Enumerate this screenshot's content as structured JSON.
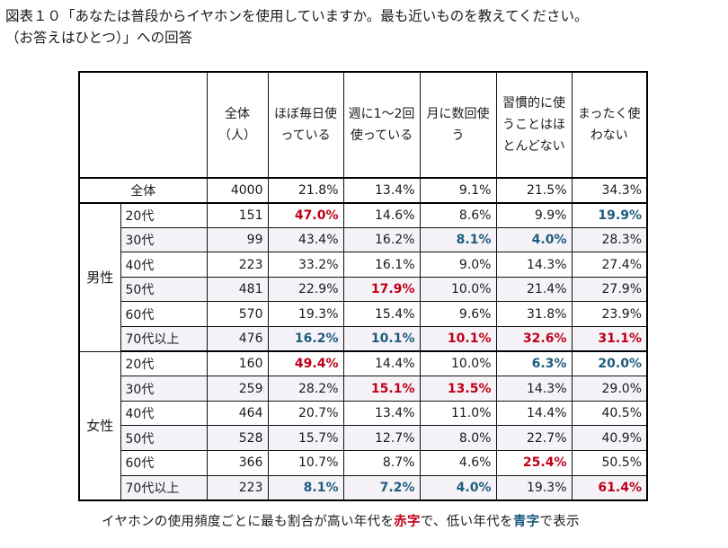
{
  "title": {
    "line1": "図表１０「あなたは普段からイヤホンを使用していますか。最も近いものを教えてください。",
    "line2": "（お答えはひとつ）」への回答"
  },
  "colors": {
    "highest": "#c00018",
    "lowest": "#1f5c7e",
    "shade": "#f6f3f8"
  },
  "columns": [
    "全体（人）",
    "ほぼ毎日使っている",
    "週に1〜2回使っている",
    "月に数回使う",
    "習慣的に使うことはほとんどない",
    "まったく使わない"
  ],
  "total": {
    "label": "全体",
    "values": [
      "4000",
      "21.8%",
      "13.4%",
      "9.1%",
      "21.5%",
      "34.3%"
    ]
  },
  "groups": [
    {
      "label": "男性",
      "rows": [
        {
          "age": "20代",
          "values": [
            "151",
            "47.0%",
            "14.6%",
            "8.6%",
            "9.9%",
            "19.9%"
          ],
          "hl": [
            "",
            "red",
            "",
            "",
            "",
            "blue"
          ]
        },
        {
          "age": "30代",
          "values": [
            "99",
            "43.4%",
            "16.2%",
            "8.1%",
            "4.0%",
            "28.3%"
          ],
          "hl": [
            "",
            "",
            "",
            "blue",
            "blue",
            ""
          ]
        },
        {
          "age": "40代",
          "values": [
            "223",
            "33.2%",
            "16.1%",
            "9.0%",
            "14.3%",
            "27.4%"
          ],
          "hl": [
            "",
            "",
            "",
            "",
            "",
            ""
          ]
        },
        {
          "age": "50代",
          "values": [
            "481",
            "22.9%",
            "17.9%",
            "10.0%",
            "21.4%",
            "27.9%"
          ],
          "hl": [
            "",
            "",
            "red",
            "",
            "",
            ""
          ]
        },
        {
          "age": "60代",
          "values": [
            "570",
            "19.3%",
            "15.4%",
            "9.6%",
            "31.8%",
            "23.9%"
          ],
          "hl": [
            "",
            "",
            "",
            "",
            "",
            ""
          ]
        },
        {
          "age": "70代以上",
          "values": [
            "476",
            "16.2%",
            "10.1%",
            "10.1%",
            "32.6%",
            "31.1%"
          ],
          "hl": [
            "",
            "blue",
            "blue",
            "red",
            "red",
            "red"
          ]
        }
      ]
    },
    {
      "label": "女性",
      "rows": [
        {
          "age": "20代",
          "values": [
            "160",
            "49.4%",
            "14.4%",
            "10.0%",
            "6.3%",
            "20.0%"
          ],
          "hl": [
            "",
            "red",
            "",
            "",
            "blue",
            "blue"
          ]
        },
        {
          "age": "30代",
          "values": [
            "259",
            "28.2%",
            "15.1%",
            "13.5%",
            "14.3%",
            "29.0%"
          ],
          "hl": [
            "",
            "",
            "red",
            "red",
            "",
            ""
          ]
        },
        {
          "age": "40代",
          "values": [
            "464",
            "20.7%",
            "13.4%",
            "11.0%",
            "14.4%",
            "40.5%"
          ],
          "hl": [
            "",
            "",
            "",
            "",
            "",
            ""
          ]
        },
        {
          "age": "50代",
          "values": [
            "528",
            "15.7%",
            "12.7%",
            "8.0%",
            "22.7%",
            "40.9%"
          ],
          "hl": [
            "",
            "",
            "",
            "",
            "",
            ""
          ]
        },
        {
          "age": "60代",
          "values": [
            "366",
            "10.7%",
            "8.7%",
            "4.6%",
            "25.4%",
            "50.5%"
          ],
          "hl": [
            "",
            "",
            "",
            "",
            "red",
            ""
          ]
        },
        {
          "age": "70代以上",
          "values": [
            "223",
            "8.1%",
            "7.2%",
            "4.0%",
            "19.3%",
            "61.4%"
          ],
          "hl": [
            "",
            "blue",
            "blue",
            "blue",
            "",
            "red"
          ]
        }
      ]
    }
  ],
  "note": {
    "part1": "イヤホンの使用頻度ごとに最も割合が高い年代を",
    "red_word": "赤字",
    "part2": "で、低い年代を",
    "blue_word": "青字",
    "part3": "で表示"
  }
}
